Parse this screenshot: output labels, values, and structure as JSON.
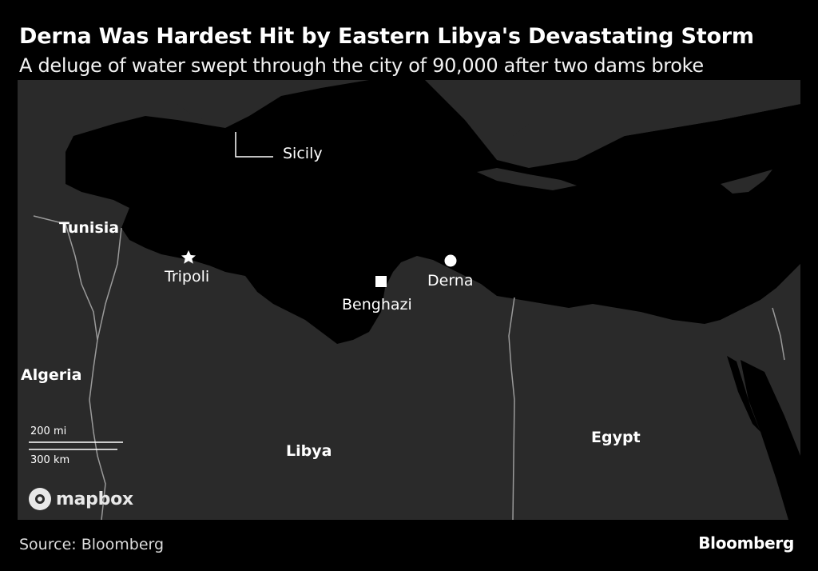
{
  "title": "Derna Was Hardest Hit by Eastern Libya's Devastating Storm",
  "subtitle": "A deluge of water swept through the city of 90,000 after two dams broke",
  "map": {
    "countries": [
      "Tunisia",
      "Algeria",
      "Libya",
      "Egypt"
    ],
    "cities": {
      "sicily": "Sicily",
      "tripoli": "Tripoli",
      "benghazi": "Benghazi",
      "derna": "Derna"
    },
    "scale": {
      "miles": "200 mi",
      "km": "300 km"
    },
    "attribution": "mapbox",
    "colors": {
      "land": "#2a2a2a",
      "sea": "#000000",
      "border": "#9a9a9a"
    }
  },
  "footer": {
    "source": "Source: Bloomberg",
    "brand": "Bloomberg"
  }
}
